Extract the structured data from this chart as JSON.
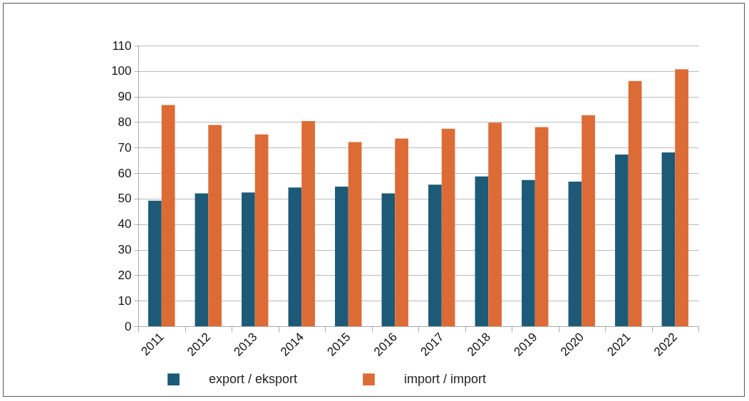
{
  "chart_data": {
    "type": "bar",
    "categories": [
      "2011",
      "2012",
      "2013",
      "2014",
      "2015",
      "2016",
      "2017",
      "2018",
      "2019",
      "2020",
      "2021",
      "2022"
    ],
    "series": [
      {
        "name": "export / eksport",
        "color": "#1c5a78",
        "values": [
          49.2,
          52.1,
          52.4,
          54.4,
          54.7,
          52.1,
          55.5,
          58.7,
          57.3,
          56.7,
          67.3,
          68.1
        ]
      },
      {
        "name": "import / import",
        "color": "#dd6b35",
        "values": [
          86.7,
          78.9,
          75.2,
          80.4,
          72.2,
          73.6,
          77.4,
          79.8,
          78.0,
          82.7,
          96.1,
          100.7
        ]
      }
    ],
    "ylim": [
      0,
      110
    ],
    "yticks": [
      0,
      10,
      20,
      30,
      40,
      50,
      60,
      70,
      80,
      90,
      100,
      110
    ],
    "grid": "y",
    "legend": "bottom"
  }
}
